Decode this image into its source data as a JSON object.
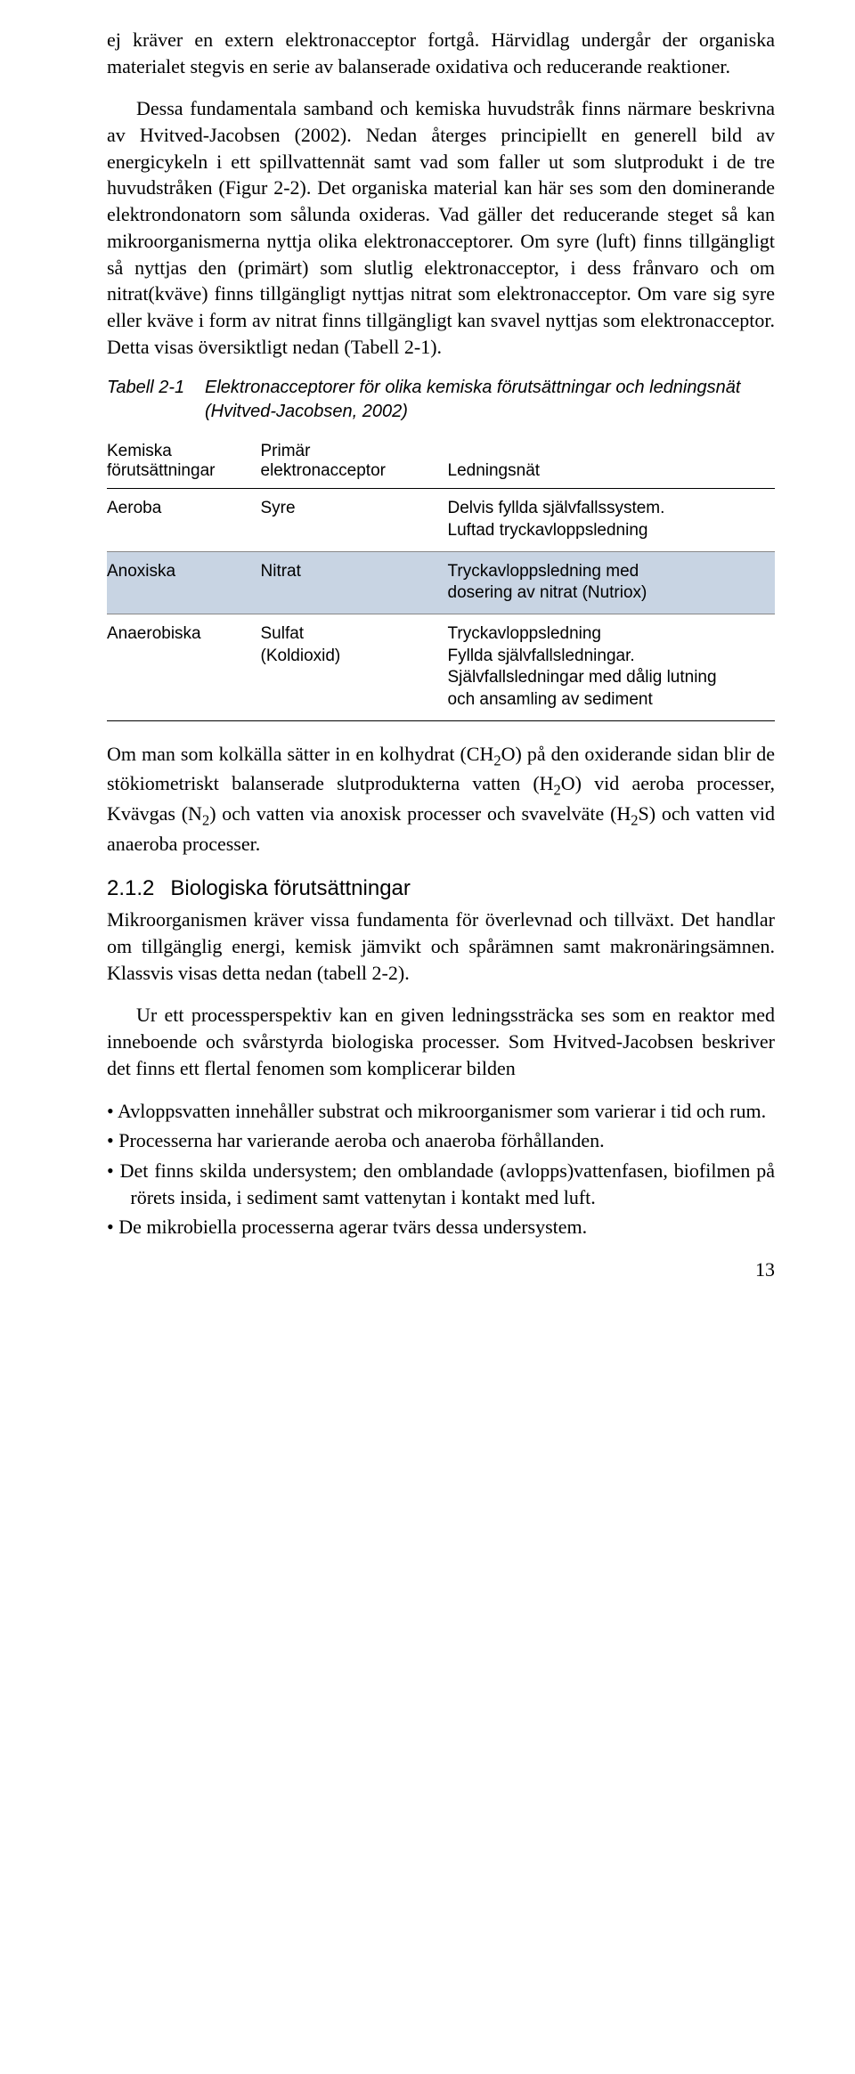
{
  "paragraphs": {
    "p1": "ej kräver en extern elektronacceptor fortgå. Härvidlag undergår der organiska materialet stegvis en serie av balanserade oxidativa och reducerande reaktioner.",
    "p2_a": "Dessa fundamentala samband och kemiska huvudstråk finns närmare beskrivna av Hvitved-Jacobsen (2002). Nedan återges principiellt en generell bild av energicykeln i ett spillvattennät samt vad som faller ut som slutprodukt i de tre huvudstråken (Figur 2-2).",
    "p2_b": "Det organiska material kan här ses som den dominerande elektrondonatorn som sålunda oxideras. Vad gäller det reducerande steget så kan mikroorganismerna nyttja olika elektronacceptorer. Om syre (luft) finns tillgängligt så nyttjas den (primärt) som slutlig elektronacceptor, i dess frånvaro och om nitrat(kväve) finns tillgängligt nyttjas nitrat som elektronacceptor. Om vare sig syre eller kväve i form av nitrat finns tillgängligt kan svavel nyttjas som elektronacceptor. Detta visas översiktligt nedan (Tabell 2-1).",
    "p3_html": "Om man som kolkälla sätter in en kolhydrat (CH<sub>2</sub>O) på den oxiderande sidan blir de stökiometriskt balanserade slutprodukterna vatten (H<sub>2</sub>O) vid aeroba processer, Kvävgas (N<sub>2</sub>) och vatten via anoxisk processer och svavelväte (H<sub>2</sub>S) och vatten vid anaeroba processer.",
    "p4": "Mikroorganismen kräver vissa fundamenta för överlevnad och tillväxt. Det handlar om tillgänglig energi, kemisk jämvikt och spårämnen samt makronäringsämnen. Klassvis visas detta nedan (tabell 2-2).",
    "p5": "Ur ett processperspektiv kan en given ledningssträcka ses som en reaktor med inneboende och svårstyrda biologiska processer. Som Hvitved-Jacobsen beskriver det finns ett flertal fenomen som komplicerar bilden"
  },
  "table": {
    "caption_label": "Tabell 2-1",
    "caption_text": "Elektronacceptorer för olika kemiska förutsättningar och ledningsnät (Hvitved-Jacobsen, 2002)",
    "headers": {
      "h1a": "Kemiska",
      "h1b": "förutsättningar",
      "h2a": "Primär",
      "h2b": "elektronacceptor",
      "h3": "Ledningsnät"
    },
    "rows": [
      {
        "highlight": false,
        "c1": "Aeroba",
        "c2": "Syre",
        "c3": "Delvis fyllda självfallssystem.\nLuftad tryckavloppsledning"
      },
      {
        "highlight": true,
        "c1": "Anoxiska",
        "c2": "Nitrat",
        "c3": "Tryckavloppsledning med\ndosering av nitrat (Nutriox)"
      },
      {
        "highlight": false,
        "c1": "Anaerobiska",
        "c2": "Sulfat\n(Koldioxid)",
        "c3": "Tryckavloppsledning\nFyllda självfallsledningar.\nSjälvfallsledningar med dålig lutning\noch ansamling av sediment"
      }
    ]
  },
  "section": {
    "number": "2.1.2",
    "title": "Biologiska förutsättningar"
  },
  "bullets": [
    "Avloppsvatten innehåller substrat och mikroorganismer som varierar i tid och rum.",
    "Processerna har varierande aeroba och anaeroba förhållanden.",
    "Det finns skilda undersystem; den omblandade (avlopps)vattenfasen, biofilmen på rörets insida, i sediment samt vattenytan i kontakt med luft.",
    "De mikrobiella processerna agerar tvärs dessa undersystem."
  ],
  "page_number": "13",
  "colors": {
    "highlight_bg": "#c8d4e3"
  }
}
